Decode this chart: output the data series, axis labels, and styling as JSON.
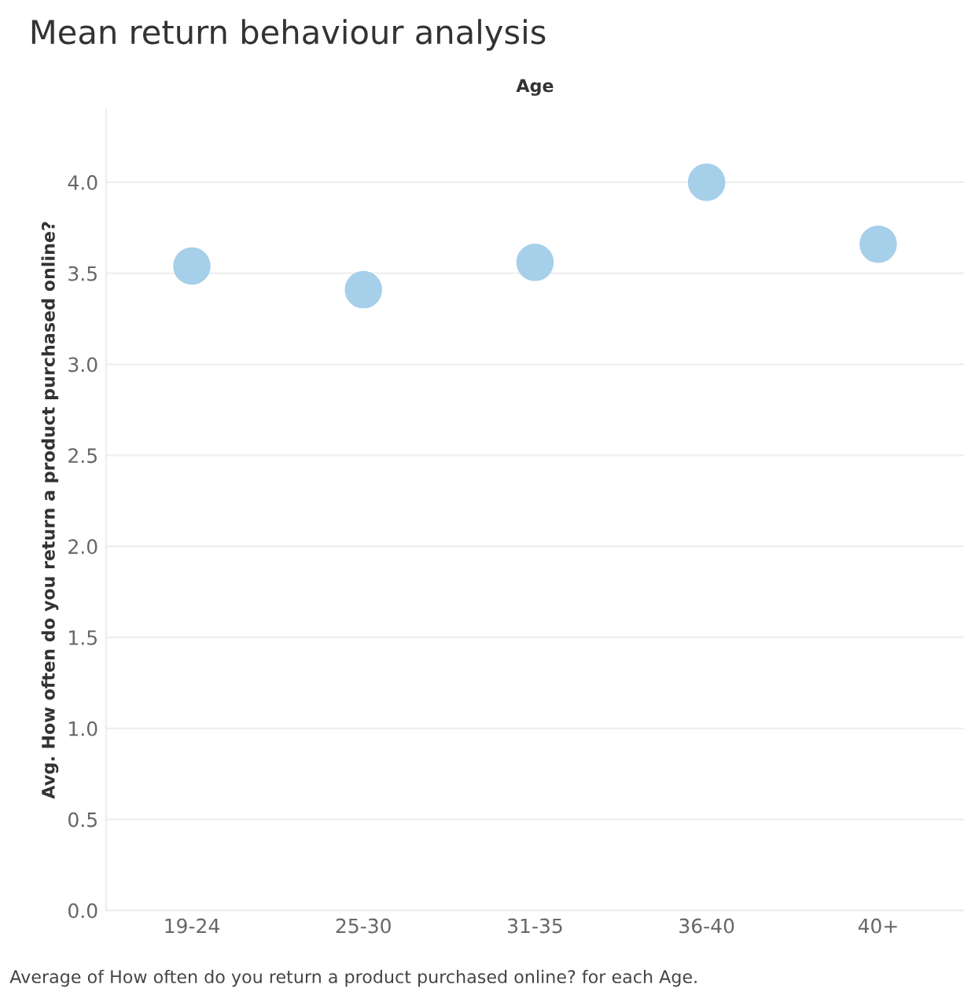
{
  "chart_data": {
    "type": "scatter",
    "title": "Mean return behaviour analysis",
    "xlabel": "Age",
    "ylabel": "Avg. How often do you return a product purchased online?",
    "categories": [
      "19-24",
      "25-30",
      "31-35",
      "36-40",
      "40+"
    ],
    "series": [
      {
        "color": "#a6cfea",
        "values": [
          3.54,
          3.41,
          3.56,
          4.0,
          3.66
        ]
      }
    ],
    "ylim": [
      0,
      4.4
    ],
    "yticks": [
      {
        "value": 0,
        "label": "0.0"
      },
      0.5,
      {
        "value": 1,
        "label": "1.0"
      },
      1.5,
      {
        "value": 2,
        "label": "2.0"
      },
      2.5,
      {
        "value": 3,
        "label": "3.0"
      },
      3.5,
      {
        "value": 4,
        "label": "4.0"
      }
    ],
    "grid": "y",
    "marker": "circle",
    "annotations": [
      "Average of How often do you return a product purchased online? for each Age."
    ]
  }
}
